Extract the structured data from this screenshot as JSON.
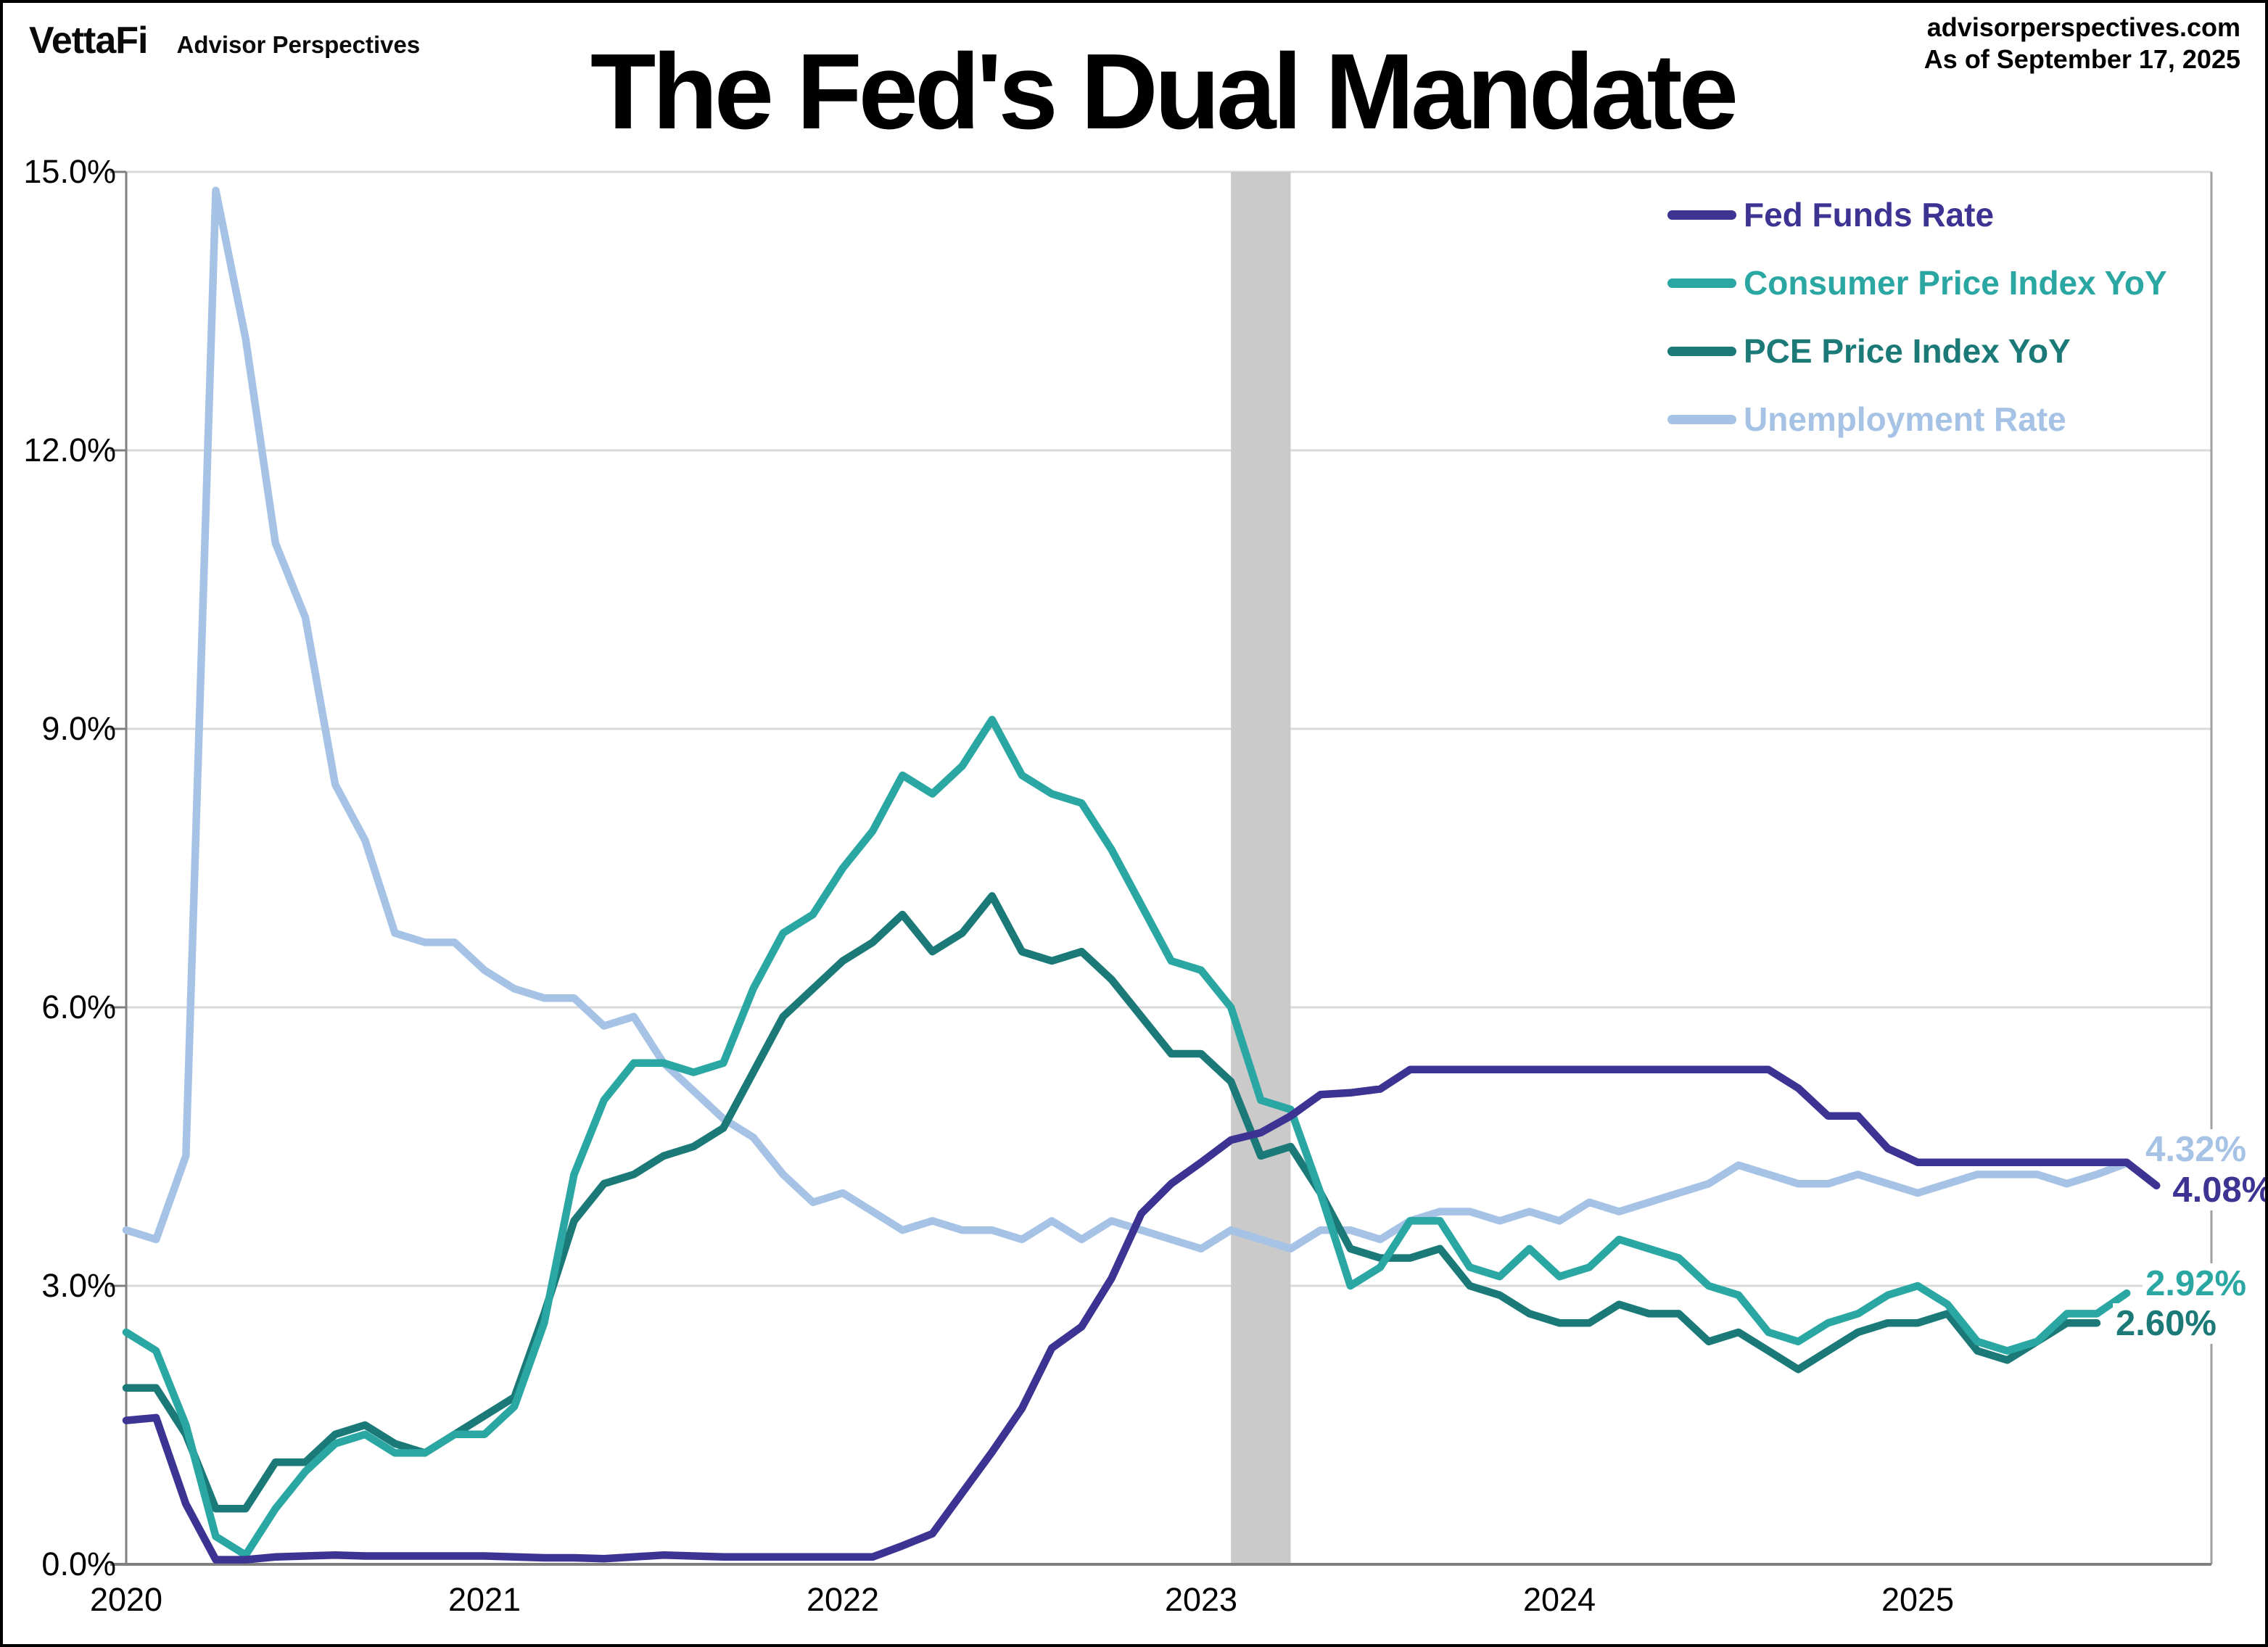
{
  "header": {
    "logo_text": "VettaFi",
    "logo_subtitle": "Advisor Perspectives",
    "source_site": "advisorperspectives.com",
    "as_of": "As of September 17, 2025"
  },
  "title": "The Fed's Dual Mandate",
  "chart_data": {
    "type": "line",
    "title": "The Fed's Dual Mandate",
    "x_start": "2020-01",
    "x_interval": "monthly",
    "x_tick_labels": [
      "2020",
      "2021",
      "2022",
      "2023",
      "2024",
      "2025"
    ],
    "y_tick_labels": [
      "15.0%",
      "12.0%",
      "9.0%",
      "6.0%",
      "3.0%",
      "0.0%"
    ],
    "ylim": [
      0,
      15
    ],
    "grid": "horizontal",
    "legend_position": "top-right-inside",
    "highlight_band": {
      "from": "2023-02",
      "to": "2023-04",
      "color": "#cacaca"
    },
    "colors": {
      "grid_line": "#d9d9d9",
      "axis_line": "#808080",
      "right_border": "#a0a0a0"
    },
    "series": [
      {
        "name": "Fed Funds Rate",
        "color": "#3d3393",
        "end_label": "4.08%",
        "values": [
          1.55,
          1.58,
          0.65,
          0.05,
          0.05,
          0.08,
          0.09,
          0.1,
          0.09,
          0.09,
          0.09,
          0.09,
          0.09,
          0.08,
          0.07,
          0.07,
          0.06,
          0.08,
          0.1,
          0.09,
          0.08,
          0.08,
          0.08,
          0.08,
          0.08,
          0.08,
          0.2,
          0.33,
          0.77,
          1.21,
          1.68,
          2.33,
          2.56,
          3.08,
          3.78,
          4.1,
          4.33,
          4.57,
          4.65,
          4.83,
          5.06,
          5.08,
          5.12,
          5.33,
          5.33,
          5.33,
          5.33,
          5.33,
          5.33,
          5.33,
          5.33,
          5.33,
          5.33,
          5.33,
          5.33,
          5.33,
          5.13,
          4.83,
          4.83,
          4.48,
          4.33,
          4.33,
          4.33,
          4.33,
          4.33,
          4.33,
          4.33,
          4.33,
          4.08
        ]
      },
      {
        "name": "Consumer Price Index YoY",
        "color": "#2aa7a2",
        "end_label": "2.92%",
        "values": [
          2.5,
          2.3,
          1.5,
          0.3,
          0.1,
          0.6,
          1.0,
          1.3,
          1.4,
          1.2,
          1.2,
          1.4,
          1.4,
          1.7,
          2.6,
          4.2,
          5.0,
          5.4,
          5.4,
          5.3,
          5.4,
          6.2,
          6.8,
          7.0,
          7.5,
          7.9,
          8.5,
          8.3,
          8.6,
          9.1,
          8.5,
          8.3,
          8.2,
          7.7,
          7.1,
          6.5,
          6.4,
          6.0,
          5.0,
          4.9,
          4.0,
          3.0,
          3.2,
          3.7,
          3.7,
          3.2,
          3.1,
          3.4,
          3.1,
          3.2,
          3.5,
          3.4,
          3.3,
          3.0,
          2.9,
          2.5,
          2.4,
          2.6,
          2.7,
          2.9,
          3.0,
          2.8,
          2.4,
          2.3,
          2.4,
          2.7,
          2.7,
          2.92
        ]
      },
      {
        "name": "PCE Price Index YoY",
        "color": "#1b7a78",
        "end_label": "2.60%",
        "values": [
          1.9,
          1.9,
          1.4,
          0.6,
          0.6,
          1.1,
          1.1,
          1.4,
          1.5,
          1.3,
          1.2,
          1.4,
          1.6,
          1.8,
          2.7,
          3.7,
          4.1,
          4.2,
          4.4,
          4.5,
          4.7,
          5.3,
          5.9,
          6.2,
          6.5,
          6.7,
          7.0,
          6.6,
          6.8,
          7.2,
          6.6,
          6.5,
          6.6,
          6.3,
          5.9,
          5.5,
          5.5,
          5.2,
          4.4,
          4.5,
          4.0,
          3.4,
          3.3,
          3.3,
          3.4,
          3.0,
          2.9,
          2.7,
          2.6,
          2.6,
          2.8,
          2.7,
          2.7,
          2.4,
          2.5,
          2.3,
          2.1,
          2.3,
          2.5,
          2.6,
          2.6,
          2.7,
          2.3,
          2.2,
          2.4,
          2.6,
          2.6
        ]
      },
      {
        "name": "Unemployment Rate",
        "color": "#a6c3e6",
        "end_label": "4.32%",
        "values": [
          3.6,
          3.5,
          4.4,
          14.8,
          13.2,
          11.0,
          10.2,
          8.4,
          7.8,
          6.8,
          6.7,
          6.7,
          6.4,
          6.2,
          6.1,
          6.1,
          5.8,
          5.9,
          5.4,
          5.1,
          4.8,
          4.6,
          4.2,
          3.9,
          4.0,
          3.8,
          3.6,
          3.7,
          3.6,
          3.6,
          3.5,
          3.7,
          3.5,
          3.7,
          3.6,
          3.5,
          3.4,
          3.6,
          3.5,
          3.4,
          3.6,
          3.6,
          3.5,
          3.7,
          3.8,
          3.8,
          3.7,
          3.8,
          3.7,
          3.9,
          3.8,
          3.9,
          4.0,
          4.1,
          4.3,
          4.2,
          4.1,
          4.1,
          4.2,
          4.1,
          4.0,
          4.1,
          4.2,
          4.2,
          4.2,
          4.1,
          4.2,
          4.32
        ]
      }
    ]
  }
}
